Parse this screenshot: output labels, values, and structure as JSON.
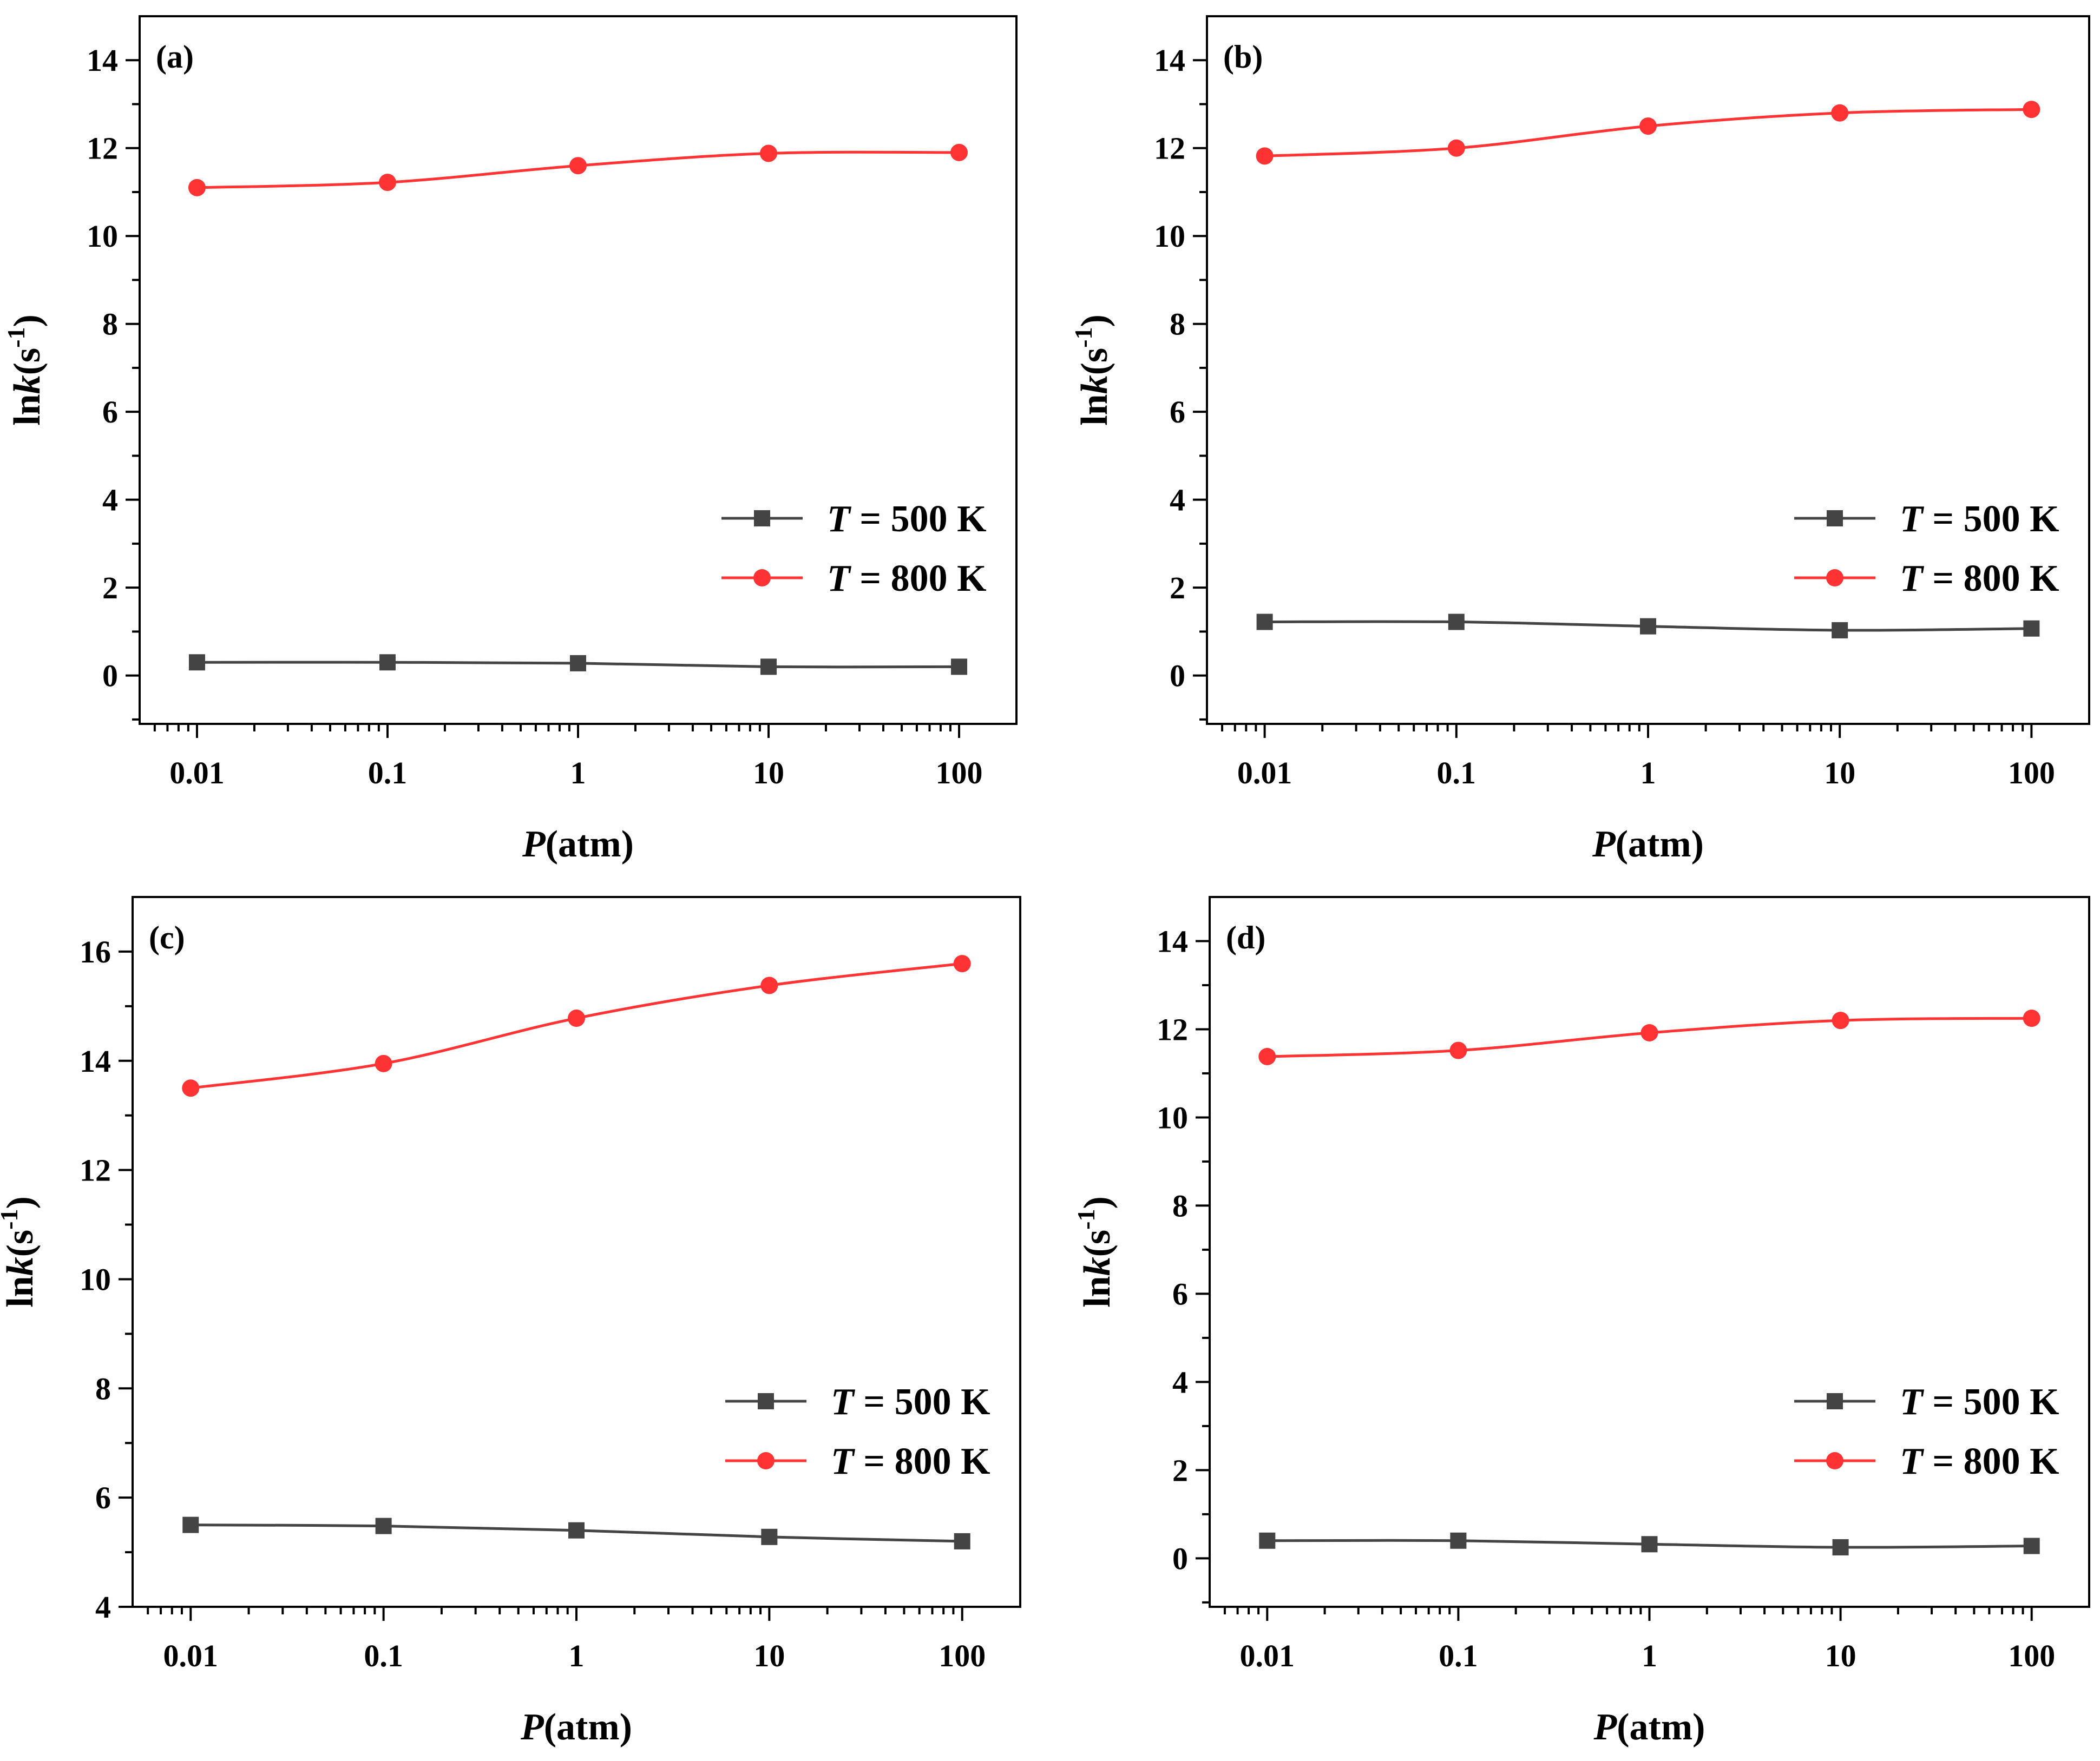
{
  "figure": {
    "colors": {
      "series_500K": "#444444",
      "series_800K": "#ff3333"
    },
    "x_tick_labels": [
      "0.01",
      "0.1",
      "1",
      "10",
      "100"
    ],
    "x_title_var": "P",
    "x_title_unit": "(atm)",
    "y_title_prefix": "ln",
    "y_title_var": "k",
    "y_title_unit": "(s",
    "y_title_exp": "-1",
    "y_title_close": ")"
  },
  "chart_data": [
    {
      "type": "line",
      "label": "(a)",
      "xscale": "log",
      "x": [
        0.01,
        0.1,
        1,
        10,
        100
      ],
      "xlim": [
        0.005,
        200
      ],
      "ylim": [
        -1.1,
        15
      ],
      "yticks": [
        0,
        2,
        4,
        6,
        8,
        10,
        12,
        14
      ],
      "ytick_labels": [
        "0",
        "2",
        "4",
        "6",
        "8",
        "10",
        "12",
        "14"
      ],
      "legend_position": "lower-right",
      "series": [
        {
          "name": "T = 500 K",
          "legend_var": "T",
          "legend_text": " = 500 K",
          "marker": "square",
          "color": "#444444",
          "values": [
            0.3,
            0.3,
            0.28,
            0.2,
            0.2
          ]
        },
        {
          "name": "T = 800 K",
          "legend_var": "T",
          "legend_text": " = 800 K",
          "marker": "circle",
          "color": "#ff3333",
          "values": [
            11.1,
            11.22,
            11.6,
            11.88,
            11.9
          ]
        }
      ]
    },
    {
      "type": "line",
      "label": "(b)",
      "xscale": "log",
      "x": [
        0.01,
        0.1,
        1,
        10,
        100
      ],
      "xlim": [
        0.005,
        200
      ],
      "ylim": [
        -1.1,
        15
      ],
      "yticks": [
        0,
        2,
        4,
        6,
        8,
        10,
        12,
        14
      ],
      "ytick_labels": [
        "0",
        "2",
        "4",
        "6",
        "8",
        "10",
        "12",
        "14"
      ],
      "legend_position": "lower-right",
      "series": [
        {
          "name": "T = 500 K",
          "legend_var": "T",
          "legend_text": " = 500 K",
          "marker": "square",
          "color": "#444444",
          "values": [
            1.22,
            1.22,
            1.12,
            1.03,
            1.07
          ]
        },
        {
          "name": "T = 800 K",
          "legend_var": "T",
          "legend_text": " = 800 K",
          "marker": "circle",
          "color": "#ff3333",
          "values": [
            11.82,
            12.0,
            12.5,
            12.8,
            12.88
          ]
        }
      ]
    },
    {
      "type": "line",
      "label": "(c)",
      "xscale": "log",
      "x": [
        0.01,
        0.1,
        1,
        10,
        100
      ],
      "xlim": [
        0.005,
        200
      ],
      "ylim": [
        4,
        17
      ],
      "yticks": [
        4,
        6,
        8,
        10,
        12,
        14,
        16
      ],
      "ytick_labels": [
        "4",
        "6",
        "8",
        "10",
        "12",
        "14",
        "16"
      ],
      "legend_position": "lower-right",
      "series": [
        {
          "name": "T = 500 K",
          "legend_var": "T",
          "legend_text": " = 500 K",
          "marker": "square",
          "color": "#444444",
          "values": [
            5.5,
            5.48,
            5.4,
            5.28,
            5.2
          ]
        },
        {
          "name": "T = 800 K",
          "legend_var": "T",
          "legend_text": " = 800 K",
          "marker": "circle",
          "color": "#ff3333",
          "values": [
            13.5,
            13.95,
            14.78,
            15.38,
            15.78
          ]
        }
      ]
    },
    {
      "type": "line",
      "label": "(d)",
      "xscale": "log",
      "x": [
        0.01,
        0.1,
        1,
        10,
        100
      ],
      "xlim": [
        0.005,
        200
      ],
      "ylim": [
        -1.1,
        15
      ],
      "yticks": [
        0,
        2,
        4,
        6,
        8,
        10,
        12,
        14
      ],
      "ytick_labels": [
        "0",
        "2",
        "4",
        "6",
        "8",
        "10",
        "12",
        "14"
      ],
      "legend_position": "lower-right",
      "series": [
        {
          "name": "T = 500 K",
          "legend_var": "T",
          "legend_text": " = 500 K",
          "marker": "square",
          "color": "#444444",
          "values": [
            0.4,
            0.4,
            0.32,
            0.25,
            0.28
          ]
        },
        {
          "name": "T = 800 K",
          "legend_var": "T",
          "legend_text": " = 800 K",
          "marker": "circle",
          "color": "#ff3333",
          "values": [
            11.38,
            11.52,
            11.92,
            12.2,
            12.25
          ]
        }
      ]
    }
  ]
}
